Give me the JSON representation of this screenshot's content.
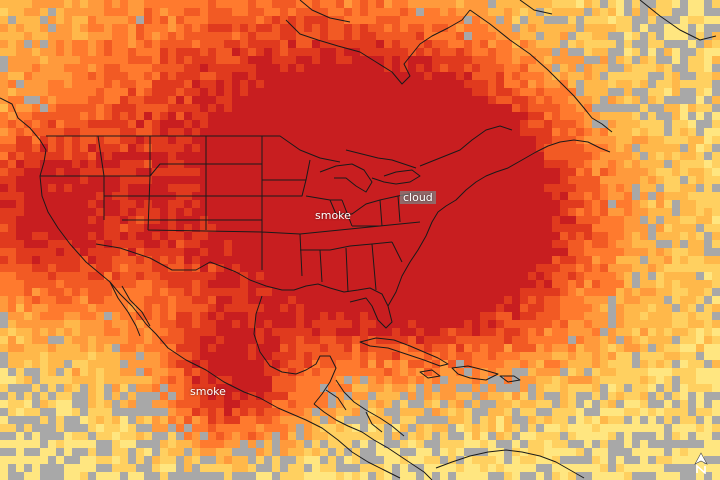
{
  "map": {
    "labels": {
      "cloud": "cloud",
      "smoke_us": "smoke",
      "smoke_mexico": "smoke"
    },
    "colors": {
      "no_data": "#a8a8a8",
      "ramp": [
        "#ffe680",
        "#ffd060",
        "#ffb84a",
        "#ff9a3c",
        "#ff7a2e",
        "#f25a24",
        "#e03a1e",
        "#c81e20"
      ],
      "borders": "#1a1a1a"
    },
    "icons": {
      "north_arrow": "north-arrow-icon"
    }
  }
}
